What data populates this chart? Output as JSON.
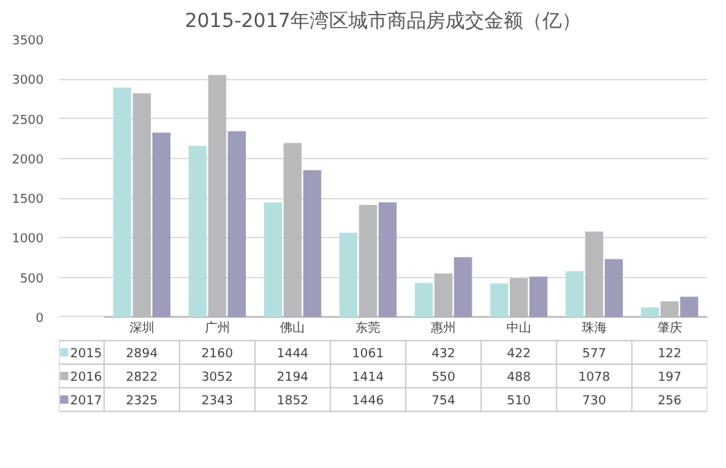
{
  "chart_data": {
    "type": "bar",
    "title": "2015-2017年湾区城市商品房成交金额（亿）",
    "categories": [
      "深圳",
      "广州",
      "佛山",
      "东莞",
      "惠州",
      "中山",
      "珠海",
      "肇庆"
    ],
    "series": [
      {
        "name": "2015",
        "color": "#b3e0df",
        "values": [
          2894,
          2160,
          1444,
          1061,
          432,
          422,
          577,
          122
        ]
      },
      {
        "name": "2016",
        "color": "#b9b9bc",
        "values": [
          2822,
          3052,
          2194,
          1414,
          550,
          488,
          1078,
          197
        ]
      },
      {
        "name": "2017",
        "color": "#9d9cbb",
        "values": [
          2325,
          2343,
          1852,
          1446,
          754,
          510,
          730,
          256
        ]
      }
    ],
    "ylim": [
      0,
      3500
    ],
    "yticks": [
      0,
      500,
      1000,
      1500,
      2000,
      2500,
      3000,
      3500
    ],
    "grid": "y",
    "data_labels": true,
    "legend": "bottom"
  }
}
